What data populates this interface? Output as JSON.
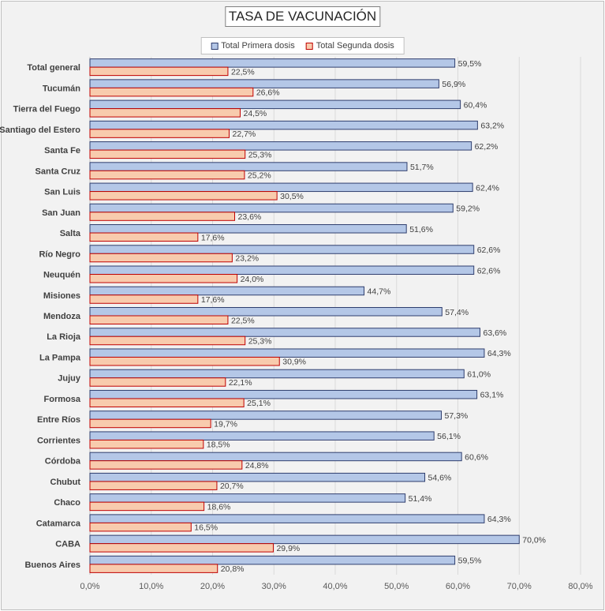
{
  "chart_data": {
    "type": "bar",
    "orientation": "horizontal",
    "title": "TASA DE VACUNACIÓN",
    "categories": [
      "Total general",
      "Tucumán",
      "Tierra del Fuego",
      "Santiago del Estero",
      "Santa Fe",
      "Santa Cruz",
      "San Luis",
      "San Juan",
      "Salta",
      "Río Negro",
      "Neuquén",
      "Misiones",
      "Mendoza",
      "La Rioja",
      "La Pampa",
      "Jujuy",
      "Formosa",
      "Entre Ríos",
      "Corrientes",
      "Córdoba",
      "Chubut",
      "Chaco",
      "Catamarca",
      "CABA",
      "Buenos Aires"
    ],
    "series": [
      {
        "name": "Total Primera dosis",
        "color": "#b4c7e7",
        "border": "#2f3e6e",
        "values": [
          59.5,
          56.9,
          60.4,
          63.2,
          62.2,
          51.7,
          62.4,
          59.2,
          51.6,
          62.6,
          62.6,
          44.7,
          57.4,
          63.6,
          64.3,
          61.0,
          63.1,
          57.3,
          56.1,
          60.6,
          54.6,
          51.4,
          64.3,
          70.0,
          59.5
        ],
        "labels": [
          "59,5%",
          "56,9%",
          "60,4%",
          "63,2%",
          "62,2%",
          "51,7%",
          "62,4%",
          "59,2%",
          "51,6%",
          "62,6%",
          "62,6%",
          "44,7%",
          "57,4%",
          "63,6%",
          "64,3%",
          "61,0%",
          "63,1%",
          "57,3%",
          "56,1%",
          "60,6%",
          "54,6%",
          "51,4%",
          "64,3%",
          "70,0%",
          "59,5%"
        ]
      },
      {
        "name": "Total Segunda dosis",
        "color": "#f8cbad",
        "border": "#c00000",
        "values": [
          22.5,
          26.6,
          24.5,
          22.7,
          25.3,
          25.2,
          30.5,
          23.6,
          17.6,
          23.2,
          24.0,
          17.6,
          22.5,
          25.3,
          30.9,
          22.1,
          25.1,
          19.7,
          18.5,
          24.8,
          20.7,
          18.6,
          16.5,
          29.9,
          20.8
        ],
        "labels": [
          "22,5%",
          "26,6%",
          "24,5%",
          "22,7%",
          "25,3%",
          "25,2%",
          "30,5%",
          "23,6%",
          "17,6%",
          "23,2%",
          "24,0%",
          "17,6%",
          "22,5%",
          "25,3%",
          "30,9%",
          "22,1%",
          "25,1%",
          "19,7%",
          "18,5%",
          "24,8%",
          "20,7%",
          "18,6%",
          "16,5%",
          "29,9%",
          "20,8%"
        ]
      }
    ],
    "xlim": [
      0,
      80
    ],
    "x_ticks": [
      0,
      10,
      20,
      30,
      40,
      50,
      60,
      70,
      80
    ],
    "x_tick_labels": [
      "0,0%",
      "10,0%",
      "20,0%",
      "30,0%",
      "40,0%",
      "50,0%",
      "60,0%",
      "70,0%",
      "80,0%"
    ],
    "grid": true,
    "legend_position": "top"
  }
}
